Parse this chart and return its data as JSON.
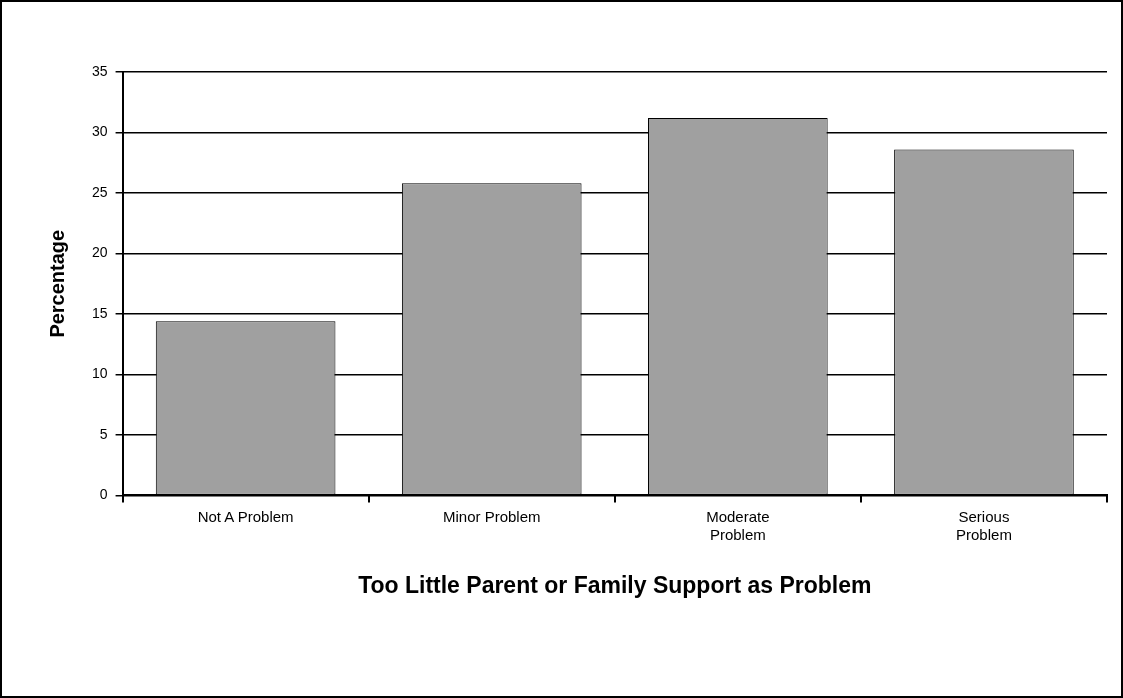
{
  "chart_data": {
    "type": "bar",
    "xlabel": "Too Little Parent or Family Support as Problem",
    "ylabel": "Percentage",
    "categories": [
      "Not A Problem",
      "Minor Problem",
      "Moderate Problem",
      "Serious Problem"
    ],
    "values": [
      14.4,
      25.8,
      31.2,
      28.6
    ],
    "color": "#a0a0a0",
    "ylim": [
      0,
      35
    ],
    "yticks": [
      0,
      5,
      10,
      15,
      20,
      25,
      30,
      35
    ],
    "grid": "y",
    "legend": false
  }
}
